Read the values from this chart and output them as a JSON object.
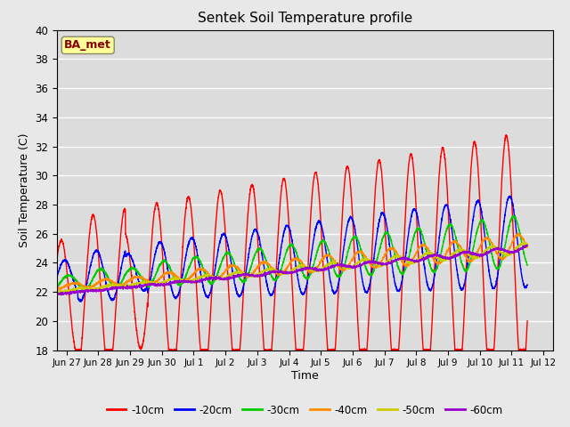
{
  "title": "Sentek Soil Temperature profile",
  "xlabel": "Time",
  "ylabel": "Soil Temperature (C)",
  "ylim": [
    18,
    40
  ],
  "yticks": [
    18,
    20,
    22,
    24,
    26,
    28,
    30,
    32,
    34,
    36,
    38,
    40
  ],
  "annotation_text": "BA_met",
  "annotation_color": "#8B0000",
  "annotation_bg": "#FFFF99",
  "fig_bg_color": "#E8E8E8",
  "plot_bg": "#DCDCDC",
  "line_width": 1.0,
  "num_days": 15.5,
  "dt_hours": 0.1,
  "depth_params": {
    "-10cm": {
      "base_s": 21.5,
      "base_e": 24.5,
      "amp_s": 5.0,
      "amp_e": 8.5,
      "phase": 0,
      "min_clip": 18.0,
      "color": "#FF0000"
    },
    "-20cm": {
      "base_s": 22.8,
      "base_e": 25.5,
      "amp_s": 1.5,
      "amp_e": 3.2,
      "phase": 2.5,
      "min_clip": 19.0,
      "color": "#0000FF"
    },
    "-30cm": {
      "base_s": 22.5,
      "base_e": 25.5,
      "amp_s": 0.5,
      "amp_e": 1.8,
      "phase": 5.5,
      "min_clip": 20.0,
      "color": "#00CC00"
    },
    "-40cm": {
      "base_s": 22.2,
      "base_e": 25.2,
      "amp_s": 0.15,
      "amp_e": 0.8,
      "phase": 9.0,
      "min_clip": 21.0,
      "color": "#FF8C00"
    },
    "-50cm": {
      "base_s": 21.9,
      "base_e": 25.0,
      "amp_s": 0.05,
      "amp_e": 0.35,
      "phase": 13.0,
      "min_clip": 21.5,
      "color": "#CCCC00"
    },
    "-60cm": {
      "base_s": 21.7,
      "base_e": 25.0,
      "amp_s": 0.02,
      "amp_e": 0.18,
      "phase": 17.0,
      "min_clip": 21.5,
      "color": "#9900CC"
    }
  },
  "tick_days": [
    1,
    2,
    3,
    4,
    5,
    6,
    7,
    8,
    9,
    10,
    11,
    12,
    13,
    14,
    15,
    16
  ],
  "tick_labels": [
    "Jun 27",
    "Jun 28",
    "Jun 29",
    "Jun 30",
    "Jul 1",
    "Jul 2",
    "Jul 3",
    "Jul 4",
    "Jul 5",
    "Jul 6",
    "Jul 7",
    "Jul 8",
    "Jul 9",
    "Jul 10",
    "Jul 11",
    "Jul 12"
  ],
  "xlim": [
    0.7,
    16.3
  ]
}
